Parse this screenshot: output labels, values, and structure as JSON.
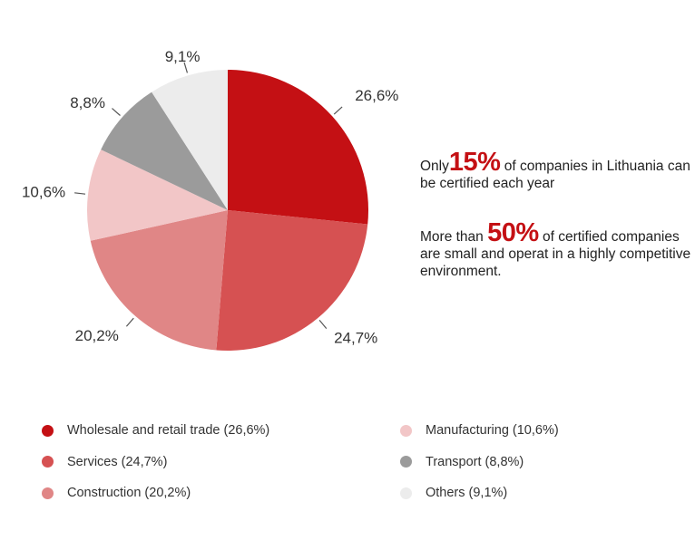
{
  "chart_data": {
    "type": "pie",
    "slices": [
      {
        "name": "Wholesale and retail trade",
        "value": 26.6,
        "label": "26,6%",
        "legend": "Wholesale and retail trade (26,6%)",
        "color": "#c41014"
      },
      {
        "name": "Services",
        "value": 24.7,
        "label": "24,7%",
        "legend": "Services (24,7%)",
        "color": "#d65152"
      },
      {
        "name": "Construction",
        "value": 20.2,
        "label": "20,2%",
        "legend": "Construction (20,2%)",
        "color": "#e08686"
      },
      {
        "name": "Manufacturing",
        "value": 10.6,
        "label": "10,6%",
        "legend": "Manufacturing (10,6%)",
        "color": "#f2c6c7"
      },
      {
        "name": "Transport",
        "value": 8.8,
        "label": "8,8%",
        "legend": "Transport (8,8%)",
        "color": "#9b9b9b"
      },
      {
        "name": "Others",
        "value": 9.1,
        "label": "9,1%",
        "legend": "Others (9,1%)",
        "color": "#ececec"
      }
    ],
    "legend_position": "bottom"
  },
  "info": {
    "line1": {
      "prefix": "Only",
      "highlight": "15%",
      "suffix": " of companies in Lithuania can be certified each year"
    },
    "line2": {
      "prefix": "More than ",
      "highlight": "50%",
      "suffix": " of certified companies are small and operat in a highly competitive environment."
    }
  },
  "accent_color": "#c41014"
}
